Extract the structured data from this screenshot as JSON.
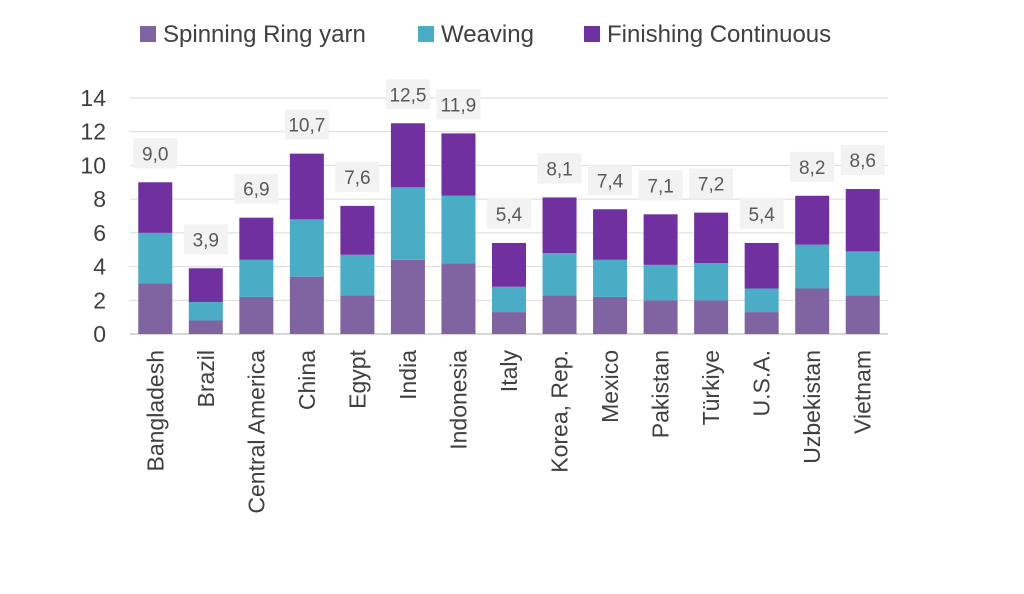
{
  "chart_data": {
    "type": "bar",
    "stacked": true,
    "categories": [
      "Bangladesh",
      "Brazil",
      "Central America",
      "China",
      "Egypt",
      "India",
      "Indonesia",
      "Italy",
      "Korea, Rep.",
      "Mexico",
      "Pakistan",
      "Türkiye",
      "U.S.A.",
      "Uzbekistan",
      "Vietnam"
    ],
    "series": [
      {
        "name": "Spinning Ring yarn",
        "color": "#8064a2",
        "values": [
          3.0,
          0.8,
          2.2,
          3.4,
          2.3,
          4.4,
          4.2,
          1.3,
          2.3,
          2.2,
          2.0,
          2.0,
          1.3,
          2.7,
          2.3
        ]
      },
      {
        "name": "Weaving",
        "color": "#4bacc6",
        "values": [
          3.0,
          1.1,
          2.2,
          3.4,
          2.4,
          4.3,
          4.0,
          1.5,
          2.5,
          2.2,
          2.1,
          2.2,
          1.4,
          2.6,
          2.6
        ]
      },
      {
        "name": "Finishing Continuous",
        "color": "#7030a0",
        "values": [
          3.0,
          2.0,
          2.5,
          3.9,
          2.9,
          3.8,
          3.7,
          2.6,
          3.3,
          3.0,
          3.0,
          3.0,
          2.7,
          2.9,
          3.7
        ]
      }
    ],
    "totals": [
      "9,0",
      "3,9",
      "6,9",
      "10,7",
      "7,6",
      "12,5",
      "11,9",
      "5,4",
      "8,1",
      "7,4",
      "7,1",
      "7,2",
      "5,4",
      "8,2",
      "8,6"
    ],
    "yticks": [
      "0",
      "2",
      "4",
      "6",
      "8",
      "10",
      "12",
      "14"
    ],
    "ylim": [
      0,
      14
    ],
    "grid": true,
    "legend": "top",
    "title": "",
    "xlabel": "",
    "ylabel": ""
  }
}
